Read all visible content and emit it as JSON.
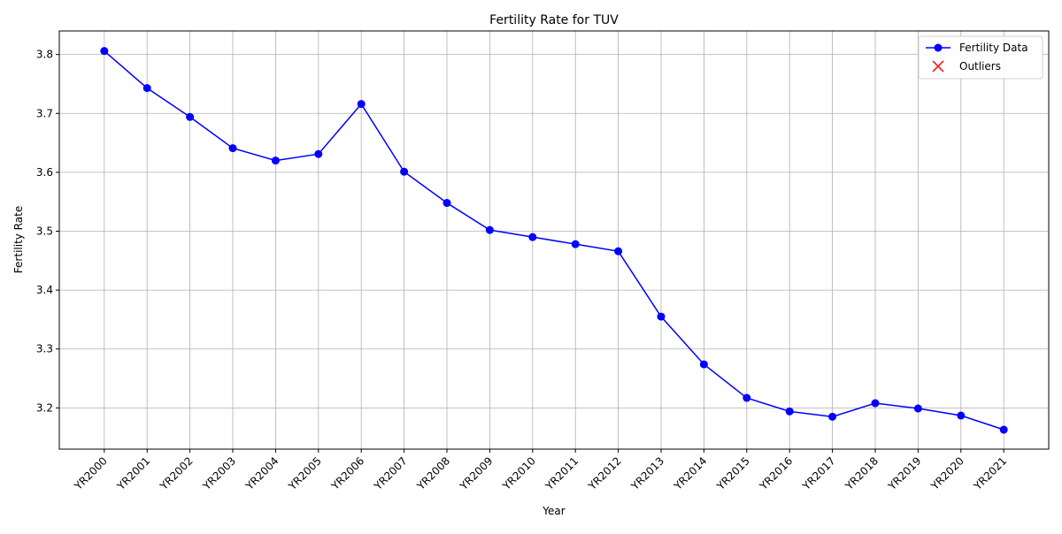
{
  "chart_data": {
    "type": "line",
    "title": "Fertility Rate for TUV",
    "xlabel": "Year",
    "ylabel": "Fertility Rate",
    "categories": [
      "YR2000",
      "YR2001",
      "YR2002",
      "YR2003",
      "YR2004",
      "YR2005",
      "YR2006",
      "YR2007",
      "YR2008",
      "YR2009",
      "YR2010",
      "YR2011",
      "YR2012",
      "YR2013",
      "YR2014",
      "YR2015",
      "YR2016",
      "YR2017",
      "YR2018",
      "YR2019",
      "YR2020",
      "YR2021"
    ],
    "series": [
      {
        "name": "Fertility Data",
        "color": "#0000ff",
        "marker": "o",
        "values": [
          3.806,
          3.743,
          3.694,
          3.641,
          3.62,
          3.631,
          3.716,
          3.601,
          3.548,
          3.502,
          3.49,
          3.478,
          3.466,
          3.355,
          3.274,
          3.217,
          3.194,
          3.185,
          3.208,
          3.199,
          3.187,
          3.163
        ]
      },
      {
        "name": "Outliers",
        "color": "#ff0000",
        "marker": "x",
        "values": [
          null,
          null,
          null,
          null,
          null,
          null,
          null,
          null,
          null,
          null,
          null,
          null,
          null,
          null,
          null,
          null,
          null,
          null,
          null,
          null,
          null,
          null
        ]
      }
    ],
    "ylim": [
      3.13,
      3.84
    ],
    "yticks": [
      3.2,
      3.3,
      3.4,
      3.5,
      3.6,
      3.7,
      3.8
    ],
    "grid": true,
    "legend": "upper right"
  }
}
